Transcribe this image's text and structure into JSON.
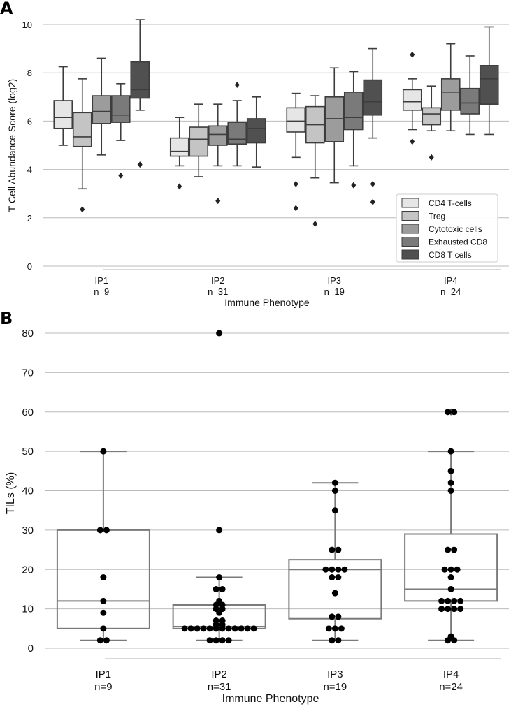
{
  "panels": {
    "a": "A",
    "b": "B"
  },
  "chart_data": [
    {
      "type": "box",
      "panel": "A",
      "title": "",
      "xlabel": "Immune Phenotype",
      "ylabel": "T Cell Abundance Score (log2)",
      "ylim": [
        0,
        10
      ],
      "yticks": [
        "0",
        "2",
        "4",
        "6",
        "8",
        "10"
      ],
      "categories": [
        "IP1",
        "IP2",
        "IP3",
        "IP4"
      ],
      "category_counts": [
        "n=9",
        "n=31",
        "n=19",
        "n=24"
      ],
      "legend_position": "bottom-right",
      "series": [
        {
          "name": "CD4 T-cells",
          "color": "#e6e6e6",
          "boxes": [
            {
              "whislo": 5.0,
              "q1": 5.7,
              "med": 6.15,
              "q3": 6.85,
              "whishi": 8.25,
              "fliers": []
            },
            {
              "whislo": 4.15,
              "q1": 4.55,
              "med": 4.75,
              "q3": 5.3,
              "whishi": 6.15,
              "fliers": [
                3.3
              ]
            },
            {
              "whislo": 4.5,
              "q1": 5.55,
              "med": 6.0,
              "q3": 6.55,
              "whishi": 7.15,
              "fliers": [
                3.4,
                2.4
              ]
            },
            {
              "whislo": 5.65,
              "q1": 6.45,
              "med": 6.8,
              "q3": 7.3,
              "whishi": 7.75,
              "fliers": [
                8.75,
                5.15
              ]
            }
          ]
        },
        {
          "name": "Treg",
          "color": "#c4c4c4",
          "boxes": [
            {
              "whislo": 3.2,
              "q1": 4.95,
              "med": 5.35,
              "q3": 6.35,
              "whishi": 7.75,
              "fliers": [
                2.35
              ]
            },
            {
              "whislo": 3.7,
              "q1": 4.55,
              "med": 5.25,
              "q3": 5.75,
              "whishi": 6.7,
              "fliers": []
            },
            {
              "whislo": 3.65,
              "q1": 5.1,
              "med": 5.85,
              "q3": 6.6,
              "whishi": 7.05,
              "fliers": [
                1.75
              ]
            },
            {
              "whislo": 5.6,
              "q1": 5.85,
              "med": 6.3,
              "q3": 6.55,
              "whishi": 7.45,
              "fliers": [
                4.5
              ]
            }
          ]
        },
        {
          "name": "Cytotoxic cells",
          "color": "#9c9c9c",
          "boxes": [
            {
              "whislo": 4.6,
              "q1": 5.9,
              "med": 6.4,
              "q3": 7.05,
              "whishi": 8.6,
              "fliers": []
            },
            {
              "whislo": 4.15,
              "q1": 5.0,
              "med": 5.45,
              "q3": 5.8,
              "whishi": 6.7,
              "fliers": [
                2.7
              ]
            },
            {
              "whislo": 3.45,
              "q1": 5.15,
              "med": 6.1,
              "q3": 7.0,
              "whishi": 8.2,
              "fliers": []
            },
            {
              "whislo": 5.6,
              "q1": 6.45,
              "med": 7.2,
              "q3": 7.75,
              "whishi": 9.2,
              "fliers": []
            }
          ]
        },
        {
          "name": "Exhausted CD8",
          "color": "#7a7a7a",
          "boxes": [
            {
              "whislo": 5.2,
              "q1": 5.95,
              "med": 6.25,
              "q3": 7.05,
              "whishi": 7.55,
              "fliers": [
                3.75
              ]
            },
            {
              "whislo": 4.15,
              "q1": 5.05,
              "med": 5.25,
              "q3": 5.95,
              "whishi": 6.85,
              "fliers": [
                7.5
              ]
            },
            {
              "whislo": 4.15,
              "q1": 5.65,
              "med": 6.15,
              "q3": 7.2,
              "whishi": 8.05,
              "fliers": [
                3.35
              ]
            },
            {
              "whislo": 5.45,
              "q1": 6.3,
              "med": 6.75,
              "q3": 7.35,
              "whishi": 8.7,
              "fliers": []
            }
          ]
        },
        {
          "name": "CD8 T cells",
          "color": "#505050",
          "boxes": [
            {
              "whislo": 6.45,
              "q1": 6.95,
              "med": 7.3,
              "q3": 8.45,
              "whishi": 10.2,
              "fliers": [
                4.2
              ]
            },
            {
              "whislo": 4.1,
              "q1": 5.1,
              "med": 5.7,
              "q3": 6.1,
              "whishi": 7.0,
              "fliers": []
            },
            {
              "whislo": 5.3,
              "q1": 6.25,
              "med": 6.8,
              "q3": 7.7,
              "whishi": 9.0,
              "fliers": [
                3.4,
                2.65
              ]
            },
            {
              "whislo": 5.45,
              "q1": 6.7,
              "med": 7.75,
              "q3": 8.3,
              "whishi": 9.9,
              "fliers": []
            }
          ]
        }
      ]
    },
    {
      "type": "box",
      "panel": "B",
      "title": "",
      "xlabel": "Immune Phenotype",
      "ylabel": "TILs (%)",
      "ylim": [
        0,
        80
      ],
      "yticks": [
        "0",
        "10",
        "20",
        "30",
        "40",
        "50",
        "60",
        "70",
        "80"
      ],
      "categories": [
        "IP1",
        "IP2",
        "IP3",
        "IP4"
      ],
      "category_counts": [
        "n=9",
        "n=31",
        "n=19",
        "n=24"
      ],
      "boxes": [
        {
          "whislo": 2,
          "q1": 5,
          "med": 12,
          "q3": 30,
          "whishi": 50,
          "fliers": []
        },
        {
          "whislo": 2,
          "q1": 5,
          "med": 5.5,
          "q3": 11,
          "whishi": 18,
          "fliers": [
            30,
            80
          ]
        },
        {
          "whislo": 2,
          "q1": 7.5,
          "med": 20,
          "q3": 22.5,
          "whishi": 42,
          "fliers": []
        },
        {
          "whislo": 2,
          "q1": 12,
          "med": 15,
          "q3": 29,
          "whishi": 50,
          "fliers": [
            60,
            60
          ]
        }
      ],
      "points": [
        [
          50,
          30,
          30,
          18,
          12,
          9,
          5,
          2,
          2
        ],
        [
          80,
          30,
          18,
          15,
          15,
          12,
          11,
          11,
          10,
          10,
          9,
          7,
          7,
          6,
          6,
          5,
          5,
          5,
          5,
          5,
          5,
          5,
          5,
          5,
          5,
          5,
          5,
          2,
          2,
          2,
          2
        ],
        [
          42,
          40,
          35,
          25,
          25,
          20,
          20,
          20,
          20,
          18,
          18,
          14,
          8,
          8,
          5,
          5,
          5,
          2,
          2
        ],
        [
          60,
          60,
          50,
          45,
          42,
          40,
          25,
          25,
          20,
          20,
          20,
          18,
          15,
          12,
          12,
          12,
          12,
          10,
          10,
          10,
          10,
          3,
          2,
          2
        ]
      ]
    }
  ]
}
